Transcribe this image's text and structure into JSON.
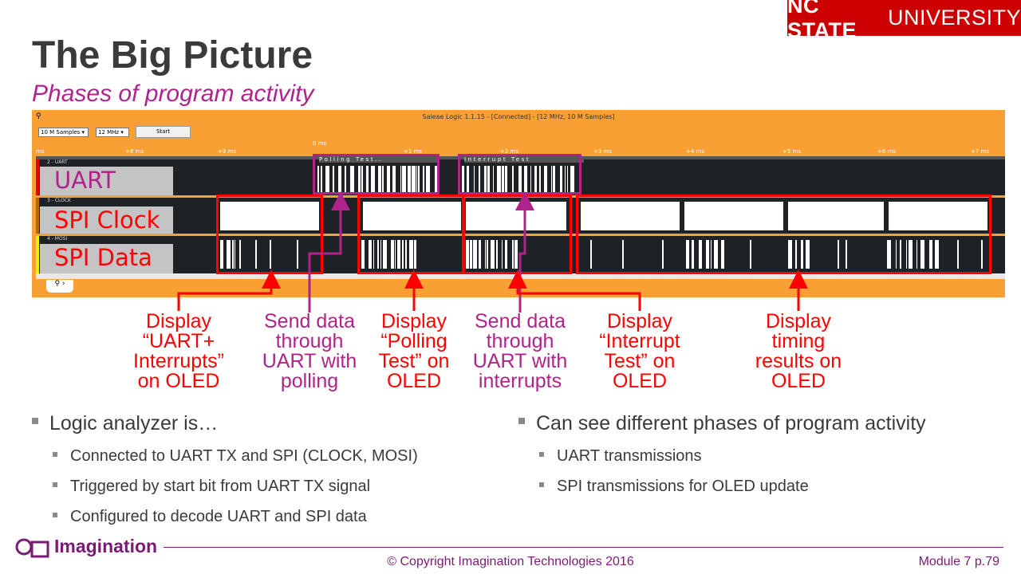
{
  "brand": {
    "university_bold": "NC STATE",
    "university_rest": "UNIVERSITY",
    "color": "#cc0000"
  },
  "slide": {
    "title": "The Big Picture",
    "subtitle": "Phases of program activity"
  },
  "analyzer": {
    "window_title": "Saleae Logic 1.1.15 - [Connected] - [12 MHz, 10 M Samples]",
    "samples": "10 M Samples",
    "rate": "12 MHz",
    "start_label": "Start",
    "zero_label": "0 ms",
    "ticks": [
      "ms",
      "+8 ms",
      "+9 ms",
      "+1 ms",
      "+2 ms",
      "+3 ms",
      "+4 ms",
      "+5 ms",
      "+6 ms",
      "+7 ms"
    ],
    "channels": [
      {
        "id": "2 - UART",
        "overlay": "UART",
        "overlay_color": "#b0238c"
      },
      {
        "id": "3 - CLOCK",
        "overlay": "SPI Clock",
        "overlay_color": "#ff0000"
      },
      {
        "id": "4 - MOSI",
        "overlay": "SPI Data",
        "overlay_color": "#ff0000"
      }
    ],
    "uart_decoded": [
      "Polling Test..",
      "Interrupt Test"
    ],
    "orange": "#f9a035"
  },
  "annotations": [
    {
      "lines": [
        "Display",
        "“UART+",
        "Interrupts”",
        "on OLED"
      ],
      "color": "red"
    },
    {
      "lines": [
        "Send data",
        "through",
        "UART with",
        "polling"
      ],
      "color": "purple"
    },
    {
      "lines": [
        "Display",
        "“Polling",
        "Test” on",
        "OLED"
      ],
      "color": "red"
    },
    {
      "lines": [
        "Send data",
        "through",
        "UART with",
        "interrupts"
      ],
      "color": "purple"
    },
    {
      "lines": [
        "Display",
        "“Interrupt",
        "Test” on",
        "OLED"
      ],
      "color": "red"
    },
    {
      "lines": [
        "Display",
        "timing",
        "results on",
        "OLED"
      ],
      "color": "red"
    }
  ],
  "bullets_left": {
    "main": "Logic analyzer is…",
    "subs": [
      "Connected to UART TX and SPI (CLOCK, MOSI)",
      "Triggered by start bit from UART TX signal",
      "Configured to decode UART and SPI data"
    ]
  },
  "bullets_right": {
    "main": "Can see different phases of program activity",
    "subs": [
      "UART transmissions",
      "SPI transmissions for OLED update"
    ]
  },
  "footer": {
    "logo": "Imagination",
    "copyright": "© Copyright Imagination Technologies 2016",
    "page": "Module 7 p.79"
  }
}
